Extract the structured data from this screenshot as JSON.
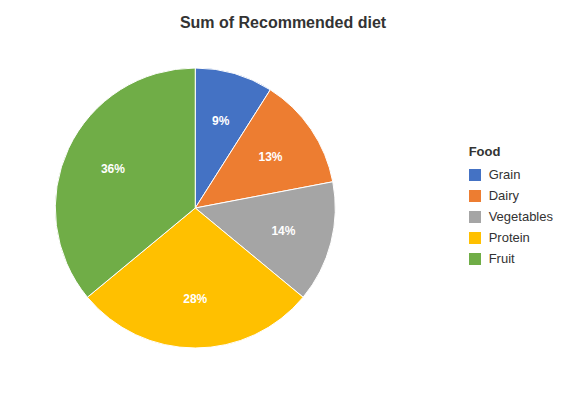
{
  "chart_data": {
    "type": "pie",
    "title": "Sum of Recommended diet",
    "legend_title": "Food",
    "categories": [
      "Grain",
      "Dairy",
      "Vegetables",
      "Protein",
      "Fruit"
    ],
    "values": [
      9,
      13,
      14,
      28,
      36
    ],
    "value_labels": [
      "9%",
      "13%",
      "14%",
      "28%",
      "36%"
    ],
    "colors": [
      "#4472C4",
      "#ED7D31",
      "#A5A5A5",
      "#FFC000",
      "#70AD47"
    ],
    "data_labels": true,
    "legend": "right"
  }
}
